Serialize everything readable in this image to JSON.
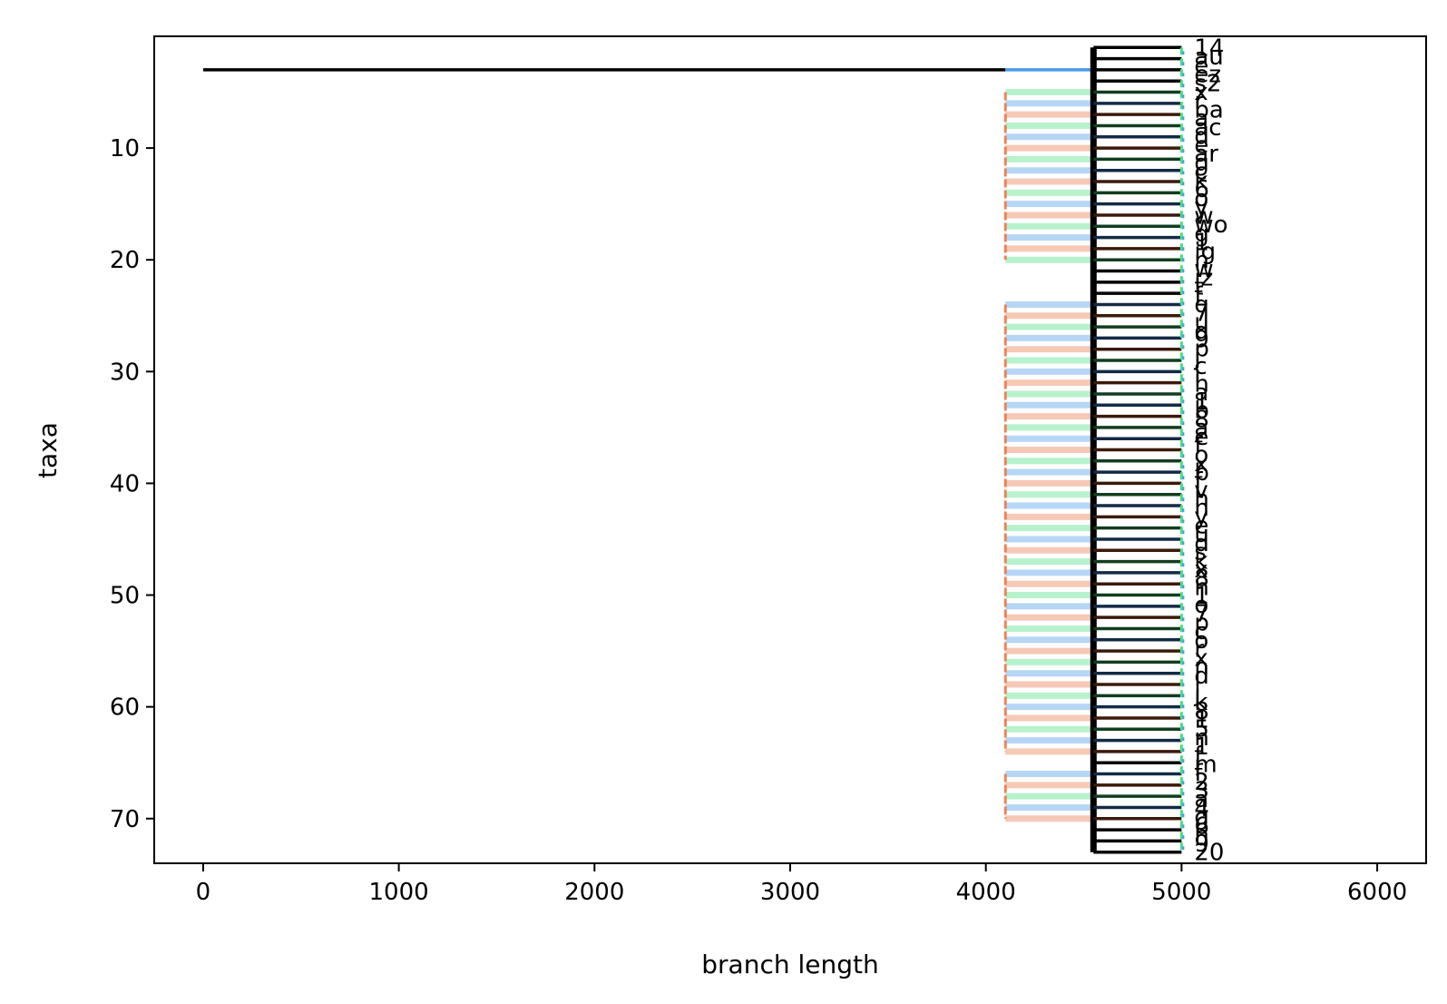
{
  "chart_data": {
    "type": "tree",
    "xlabel": "branch length",
    "ylabel": "taxa",
    "xlim": [
      -250,
      6250
    ],
    "ylim": [
      74,
      0
    ],
    "xticks": [
      0,
      1000,
      2000,
      3000,
      4000,
      5000,
      6000
    ],
    "yticks": [
      10,
      20,
      30,
      40,
      50,
      60,
      70
    ],
    "grid": false,
    "legend": "none",
    "root": {
      "x0": 0,
      "x1": 4100,
      "y": 3
    },
    "inner_node_x": 4550,
    "tip_x": 5000,
    "tip_y_range": [
      1,
      73
    ],
    "tip_labels": [
      "14",
      "au",
      "e",
      "ez",
      "s2",
      "x",
      "r",
      "ba",
      "a",
      "ac",
      "d",
      "e",
      "ar",
      "g",
      "c",
      "k",
      "6",
      "o",
      "y",
      "w",
      "wo",
      "g",
      "1",
      "ig",
      "n",
      "w",
      "iz",
      "t",
      "f",
      "q",
      "7",
      "u",
      "d",
      "9",
      "p",
      "j",
      "c",
      "i",
      "h",
      "a",
      "1",
      "b",
      "8",
      "a",
      "e",
      "f",
      "o",
      "x",
      "b",
      "f",
      "v",
      "h",
      "n",
      "y",
      "e",
      "u",
      "d",
      "s",
      "k",
      "x",
      "8",
      "n",
      "1",
      "o",
      "7",
      "p",
      "c",
      "o",
      "r",
      "x",
      "n",
      "d",
      "l",
      "j",
      "k",
      "8",
      "1",
      "5",
      "n",
      "1",
      "f",
      "m",
      "f",
      "2",
      "3",
      "a",
      "4",
      "g",
      "6",
      "n",
      "9",
      "20"
    ],
    "colors": {
      "tree": "#000000",
      "orange": "#e8794a",
      "green": "#4ade80",
      "blue": "#4a98e8",
      "dark_brown": "#3a1a0a",
      "dark_green": "#123d1e",
      "dark_navy": "#132a44"
    }
  }
}
